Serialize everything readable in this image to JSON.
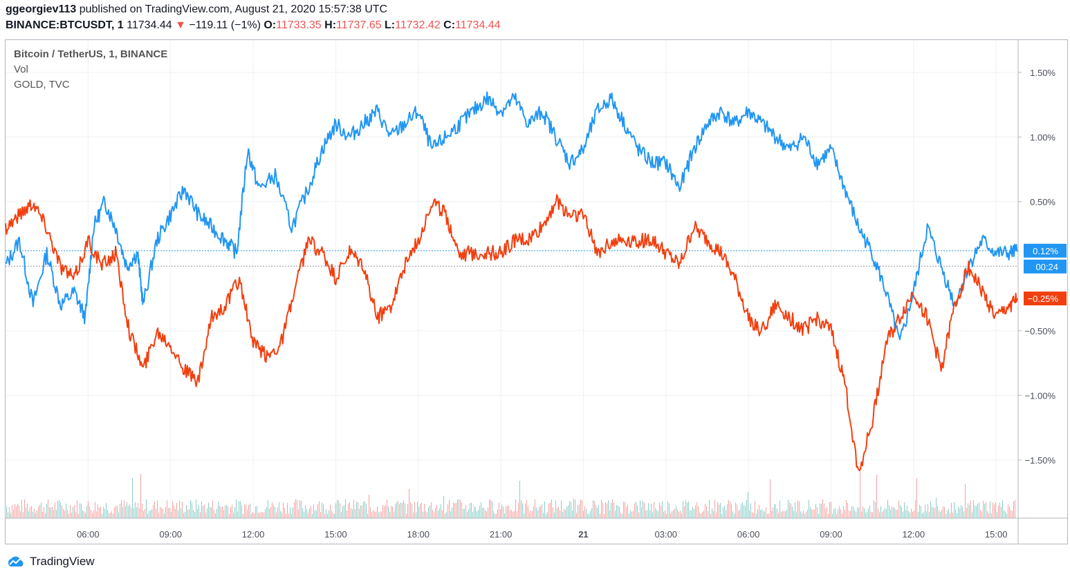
{
  "header": {
    "user": "ggeorgiev113",
    "published": "published on TradingView.com, August 21, 2020 15:57:38 UTC",
    "symbol": "BINANCE:BTCUSDT, 1",
    "last": "11734.44",
    "change_arrow": "▼",
    "change": "−119.11 (−1%)",
    "o_label": "O:",
    "o_value": "11733.35",
    "h_label": "H:",
    "h_value": "11737.65",
    "l_label": "L:",
    "l_value": "11732.42",
    "c_label": "C:",
    "c_value": "11734.44"
  },
  "legend": {
    "main": "Bitcoin / TetherUS, 1, BINANCE",
    "vol": "Vol",
    "compare": "GOLD, TVC"
  },
  "brand": {
    "name": "TradingView",
    "icon": "tradingview-cloud-logo-icon"
  },
  "colors": {
    "btc": "#2196f3",
    "gold": "#f23f0f",
    "vol_up": "#26a69a",
    "vol_down": "#ef5350",
    "grid": "#eef0f3"
  },
  "chart_data": {
    "type": "line",
    "ylabel": "",
    "y_unit": "%",
    "ylim": [
      -1.95,
      1.75
    ],
    "y_ticks": [
      1.5,
      1.0,
      0.5,
      -0.5,
      -1.0,
      -1.5
    ],
    "y_tick_labels": [
      "1.50%",
      "1.00%",
      "0.50%",
      "−0.50%",
      "−1.00%",
      "−1.50%"
    ],
    "x_unit": "hours since Aug 20 03:00 UTC",
    "xlim": [
      0,
      36.8
    ],
    "x_ticks": [
      3,
      6,
      9,
      12,
      15,
      18,
      21,
      24,
      27,
      30,
      33,
      36
    ],
    "x_tick_labels": [
      "06:00",
      "09:00",
      "12:00",
      "15:00",
      "18:00",
      "21:00",
      "21",
      "03:00",
      "06:00",
      "09:00",
      "12:00",
      "15:00"
    ],
    "grid": true,
    "series": [
      {
        "name": "Bitcoin / TetherUS",
        "color": "#2196f3",
        "last_label": "0.12%",
        "x": [
          0,
          0.5,
          1.0,
          1.5,
          2.0,
          2.5,
          2.9,
          3.2,
          3.6,
          4.0,
          4.4,
          4.8,
          5.0,
          5.5,
          6.0,
          6.5,
          7.0,
          7.5,
          8.0,
          8.4,
          8.8,
          9.2,
          9.8,
          10.4,
          11.0,
          11.5,
          12.0,
          12.5,
          13.0,
          13.5,
          14.0,
          14.5,
          15.0,
          15.5,
          16.0,
          16.5,
          17.0,
          17.5,
          18.0,
          18.5,
          19.0,
          19.5,
          20.0,
          20.5,
          21.0,
          21.5,
          22.0,
          22.5,
          23.0,
          23.5,
          24.0,
          24.5,
          25.0,
          25.5,
          26.0,
          26.5,
          27.0,
          27.5,
          28.0,
          28.5,
          29.0,
          29.5,
          30.0,
          30.5,
          31.0,
          31.5,
          32.0,
          32.5,
          33.0,
          33.5,
          34.0,
          34.5,
          35.0,
          35.5,
          36.0,
          36.5,
          36.8
        ],
        "y": [
          0.0,
          0.2,
          -0.3,
          0.1,
          -0.3,
          -0.2,
          -0.4,
          0.3,
          0.5,
          0.3,
          0.0,
          0.1,
          -0.3,
          0.2,
          0.4,
          0.6,
          0.4,
          0.3,
          0.2,
          0.1,
          0.9,
          0.6,
          0.7,
          0.3,
          0.6,
          0.9,
          1.1,
          1.0,
          1.1,
          1.2,
          1.0,
          1.1,
          1.2,
          0.9,
          1.0,
          1.1,
          1.2,
          1.3,
          1.2,
          1.3,
          1.1,
          1.2,
          1.0,
          0.8,
          0.9,
          1.2,
          1.3,
          1.1,
          0.9,
          0.8,
          0.8,
          0.6,
          0.9,
          1.1,
          1.2,
          1.1,
          1.2,
          1.1,
          1.0,
          0.9,
          1.0,
          0.8,
          0.9,
          0.6,
          0.3,
          0.1,
          -0.2,
          -0.6,
          -0.2,
          0.3,
          0.0,
          -0.3,
          0.0,
          0.2,
          0.1,
          0.1,
          0.12
        ]
      },
      {
        "name": "GOLD, TVC",
        "color": "#f23f0f",
        "last_label": "−0.25%",
        "x": [
          0,
          0.5,
          1.0,
          1.5,
          2.0,
          2.5,
          3.0,
          3.5,
          4.0,
          4.5,
          5.0,
          5.5,
          6.0,
          6.5,
          7.0,
          7.5,
          8.0,
          8.5,
          9.0,
          9.5,
          10.0,
          10.5,
          11.0,
          11.5,
          12.0,
          12.5,
          13.0,
          13.5,
          14.0,
          14.5,
          15.0,
          15.5,
          16.0,
          16.5,
          17.0,
          17.5,
          18.0,
          18.5,
          19.0,
          19.5,
          20.0,
          20.5,
          21.0,
          21.5,
          22.0,
          22.5,
          23.0,
          23.5,
          24.0,
          24.5,
          25.0,
          25.5,
          26.0,
          26.5,
          27.0,
          27.5,
          28.0,
          28.5,
          29.0,
          29.5,
          30.0,
          30.5,
          31.0,
          31.5,
          32.0,
          32.5,
          33.0,
          33.5,
          34.0,
          34.5,
          35.0,
          35.5,
          36.0,
          36.5,
          36.8
        ],
        "y": [
          0.3,
          0.4,
          0.5,
          0.3,
          0.0,
          -0.1,
          0.2,
          0.0,
          0.1,
          -0.5,
          -0.8,
          -0.5,
          -0.6,
          -0.8,
          -0.9,
          -0.4,
          -0.3,
          -0.1,
          -0.6,
          -0.7,
          -0.6,
          -0.2,
          0.2,
          0.1,
          -0.1,
          0.1,
          0.0,
          -0.4,
          -0.3,
          0.0,
          0.2,
          0.5,
          0.4,
          0.1,
          0.1,
          0.1,
          0.1,
          0.2,
          0.2,
          0.3,
          0.5,
          0.4,
          0.4,
          0.1,
          0.2,
          0.2,
          0.2,
          0.2,
          0.1,
          0.0,
          0.3,
          0.2,
          0.1,
          -0.1,
          -0.4,
          -0.5,
          -0.3,
          -0.4,
          -0.5,
          -0.4,
          -0.5,
          -0.9,
          -1.6,
          -1.2,
          -0.6,
          -0.4,
          -0.2,
          -0.4,
          -0.8,
          -0.3,
          0.0,
          -0.2,
          -0.4,
          -0.3,
          -0.25
        ]
      }
    ],
    "current_countdown": "00:24"
  }
}
